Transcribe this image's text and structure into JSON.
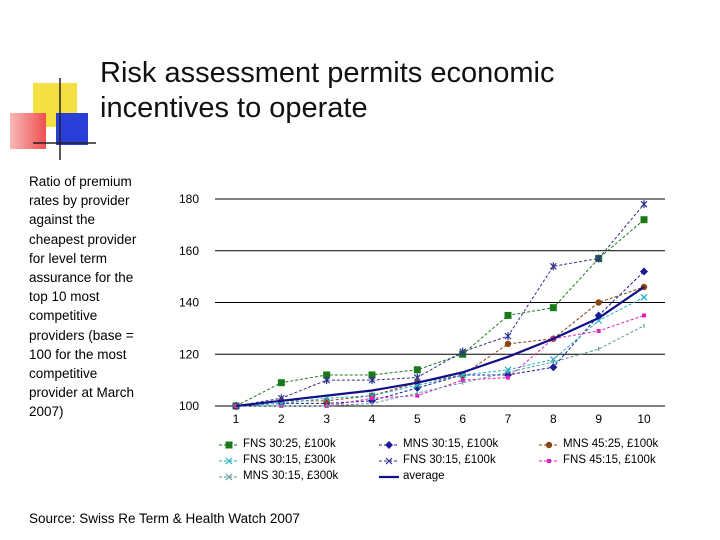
{
  "title": "Risk assessment permits economic incentives to operate",
  "description": "Ratio of premium rates by provider against the cheapest provider for level term assurance for the top 10 most competitive providers (base = 100 for the most competitive provider at March 2007)",
  "source": "Source: Swiss Re Term & Health Watch 2007",
  "colors": {
    "logo_yellow": "#f5e042",
    "logo_red": "#f05050",
    "logo_blue": "#2a3fd8",
    "logo_pink": "#f7b8b8",
    "gridline": "#000000"
  },
  "chart_data": {
    "type": "line",
    "x": [
      "1",
      "2",
      "3",
      "4",
      "5",
      "6",
      "7",
      "8",
      "9",
      "10"
    ],
    "ylim": [
      100,
      180
    ],
    "yticks": [
      "100",
      "120",
      "140",
      "160",
      "180"
    ],
    "grid": true,
    "legend_position": "bottom",
    "series": [
      {
        "name": "FNS 30:25, £100k",
        "color": "#1a7a1a",
        "marker": "square",
        "dash": "3,2",
        "values": [
          100,
          109,
          112,
          112,
          114,
          120,
          135,
          138,
          157,
          172
        ]
      },
      {
        "name": "MNS 30:15, £100k",
        "color": "#1a1a9a",
        "marker": "diamond",
        "dash": "3,2",
        "values": [
          100,
          101,
          101,
          102,
          107,
          112,
          112,
          115,
          135,
          152
        ]
      },
      {
        "name": "MNS 45:25, £100k",
        "color": "#8b4513",
        "marker": "circle",
        "dash": "3,2",
        "values": [
          100,
          102,
          102,
          104,
          109,
          112,
          124,
          126,
          140,
          146
        ]
      },
      {
        "name": "FNS 30:15, £300k",
        "color": "#20b0c8",
        "marker": "x",
        "dash": "3,2",
        "values": [
          100,
          101,
          103,
          104,
          108,
          112,
          114,
          118,
          133,
          142
        ]
      },
      {
        "name": "FNS 30:15, £100k",
        "color": "#303090",
        "marker": "star",
        "dash": "3,2",
        "values": [
          100,
          103,
          110,
          110,
          111,
          121,
          127,
          154,
          157,
          178
        ]
      },
      {
        "name": "FNS 45:15, £100k",
        "color": "#e020c0",
        "marker": "square-small",
        "dash": "3,2",
        "values": [
          100,
          100,
          100,
          103,
          104,
          110,
          111,
          126,
          129,
          135
        ]
      },
      {
        "name": "MNS 30:15, £300k",
        "color": "#5a9a9a",
        "marker": "dash",
        "dash": "3,2",
        "values": [
          100,
          100,
          100,
          101,
          105,
          109,
          113,
          117,
          122,
          131
        ]
      },
      {
        "name": "average",
        "color": "#10108a",
        "marker": "none",
        "dash": "",
        "values": [
          100,
          102,
          104,
          106,
          109,
          113,
          119,
          126,
          134,
          146
        ]
      }
    ]
  }
}
